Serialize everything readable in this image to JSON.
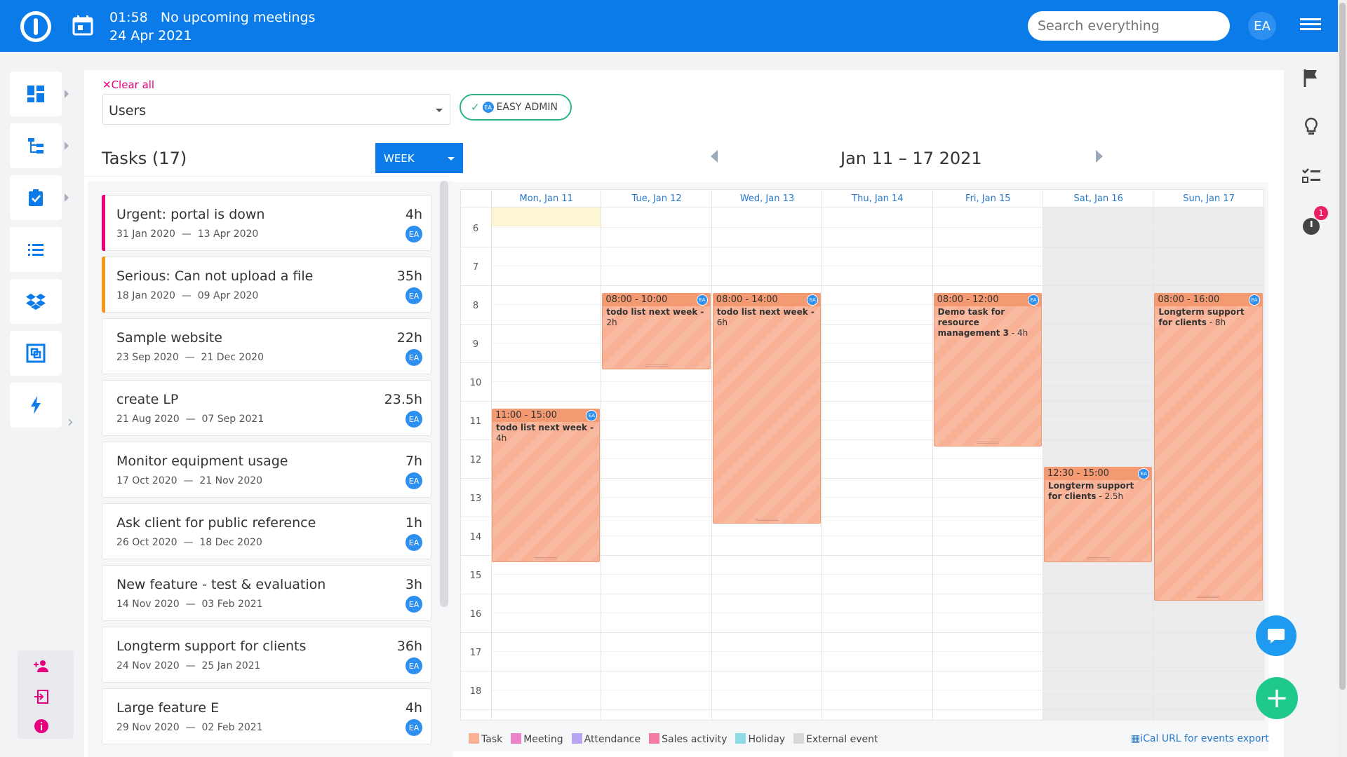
{
  "header": {
    "time": "01:58",
    "meetings": "No upcoming meetings",
    "date": "24 Apr 2021",
    "search_placeholder": "Search everything",
    "user_initials": "EA"
  },
  "filter": {
    "clear_label": "Clear all",
    "select_value": "Users",
    "chip_label": "EASY ADMIN",
    "chip_initials": "EA"
  },
  "tasks": {
    "title": "Tasks (17)",
    "items": [
      {
        "name": "Urgent: portal is down",
        "start": "31 Jan 2020",
        "end": "13 Apr 2020",
        "hours": "4h",
        "assignee": "EA",
        "accent": "#e6007e"
      },
      {
        "name": "Serious: Can not upload a file",
        "start": "18 Jan 2020",
        "end": "09 Apr 2020",
        "hours": "35h",
        "assignee": "EA",
        "accent": "#f7941d"
      },
      {
        "name": "Sample website",
        "start": "23 Sep 2020",
        "end": "21 Dec 2020",
        "hours": "22h",
        "assignee": "EA",
        "accent": ""
      },
      {
        "name": "create LP",
        "start": "21 Aug 2020",
        "end": "07 Sep 2021",
        "hours": "23.5h",
        "assignee": "EA",
        "accent": ""
      },
      {
        "name": "Monitor equipment usage",
        "start": "17 Oct 2020",
        "end": "21 Nov 2020",
        "hours": "7h",
        "assignee": "EA",
        "accent": ""
      },
      {
        "name": "Ask client for public reference",
        "start": "26 Oct 2020",
        "end": "18 Dec 2020",
        "hours": "1h",
        "assignee": "EA",
        "accent": ""
      },
      {
        "name": "New feature - test & evaluation",
        "start": "14 Nov 2020",
        "end": "03 Feb 2021",
        "hours": "3h",
        "assignee": "EA",
        "accent": ""
      },
      {
        "name": "Longterm support for clients",
        "start": "24 Nov 2020",
        "end": "25 Jan 2021",
        "hours": "36h",
        "assignee": "EA",
        "accent": ""
      },
      {
        "name": "Large feature E",
        "start": "29 Nov 2020",
        "end": "02 Feb 2021",
        "hours": "4h",
        "assignee": "EA",
        "accent": ""
      }
    ]
  },
  "calendar": {
    "view_label": "WEEK",
    "range": "Jan 11 – 17 2021",
    "days": [
      "Mon, Jan 11",
      "Tue, Jan 12",
      "Wed, Jan 13",
      "Thu, Jan 14",
      "Fri, Jan 15",
      "Sat, Jan 16",
      "Sun, Jan 17"
    ],
    "hours": [
      "6",
      "7",
      "8",
      "9",
      "10",
      "11",
      "12",
      "13",
      "14",
      "15",
      "16",
      "17",
      "18"
    ],
    "events": [
      {
        "day": 0,
        "start": 11,
        "end": 15,
        "time": "11:00 - 15:00",
        "title": "todo list next week -",
        "duration": "4h",
        "assignee": "EA"
      },
      {
        "day": 1,
        "start": 8,
        "end": 10,
        "time": "08:00 - 10:00",
        "title": "todo list next week -",
        "duration": "2h",
        "assignee": "EA"
      },
      {
        "day": 2,
        "start": 8,
        "end": 14,
        "time": "08:00 - 14:00",
        "title": "todo list next week -",
        "duration": "6h",
        "assignee": "EA"
      },
      {
        "day": 4,
        "start": 8,
        "end": 12,
        "time": "08:00 - 12:00",
        "title": "Demo task for resource management 3",
        "duration": "- 4h",
        "assignee": "EA"
      },
      {
        "day": 5,
        "start": 12.5,
        "end": 15,
        "time": "12:30 - 15:00",
        "title": "Longterm support for clients",
        "duration": "- 2.5h",
        "assignee": "EA"
      },
      {
        "day": 6,
        "start": 8,
        "end": 16,
        "time": "08:00 - 16:00",
        "title": "Longterm support for clients",
        "duration": "- 8h",
        "assignee": "EA"
      }
    ],
    "legend": [
      {
        "label": "Task",
        "color": "#f8b195"
      },
      {
        "label": "Meeting",
        "color": "#ee82c8"
      },
      {
        "label": "Attendance",
        "color": "#b9a6f2"
      },
      {
        "label": "Sales activity",
        "color": "#f47ba1"
      },
      {
        "label": "Holiday",
        "color": "#8edce6"
      },
      {
        "label": "External event",
        "color": "#d9d9d9"
      }
    ],
    "ical_label": "iCal URL for events export"
  },
  "nav": {
    "left_icons": [
      "dashboard-icon",
      "hierarchy-icon",
      "task-check-icon",
      "list-icon",
      "dropbox-icon",
      "resource-icon",
      "lightning-icon"
    ],
    "right_icons": [
      "flag-icon",
      "lightbulb-icon",
      "checklist-icon",
      "timer-icon"
    ],
    "timer_badge": "1"
  }
}
